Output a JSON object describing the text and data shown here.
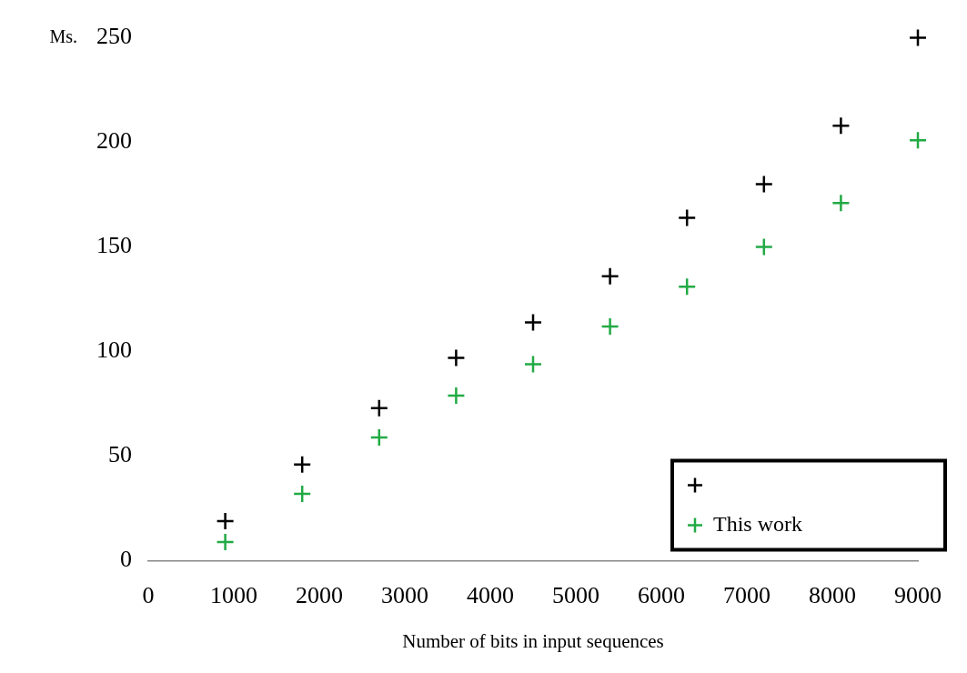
{
  "chart_data": {
    "type": "scatter",
    "xlabel": "Number of bits in input sequences",
    "ylabel": "Ms.",
    "x": [
      900,
      1800,
      2700,
      3600,
      4500,
      5400,
      6300,
      7200,
      8100,
      9000
    ],
    "series": [
      {
        "color": "#000000",
        "values": [
          19,
          46,
          73,
          97,
          114,
          136,
          164,
          180,
          208,
          250
        ]
      },
      {
        "name": "This work",
        "color": "#22aa44",
        "values": [
          9,
          32,
          59,
          79,
          94,
          112,
          131,
          150,
          171,
          201
        ]
      }
    ],
    "xlim": [
      0,
      9000
    ],
    "xticks": [
      0,
      1000,
      2000,
      3000,
      4000,
      5000,
      6000,
      7000,
      8000,
      9000
    ],
    "ylim": [
      0,
      250
    ],
    "yticks": [
      0,
      50,
      100,
      150,
      200,
      250
    ],
    "grid": false,
    "legend": "bottom right",
    "marker": "cross"
  }
}
